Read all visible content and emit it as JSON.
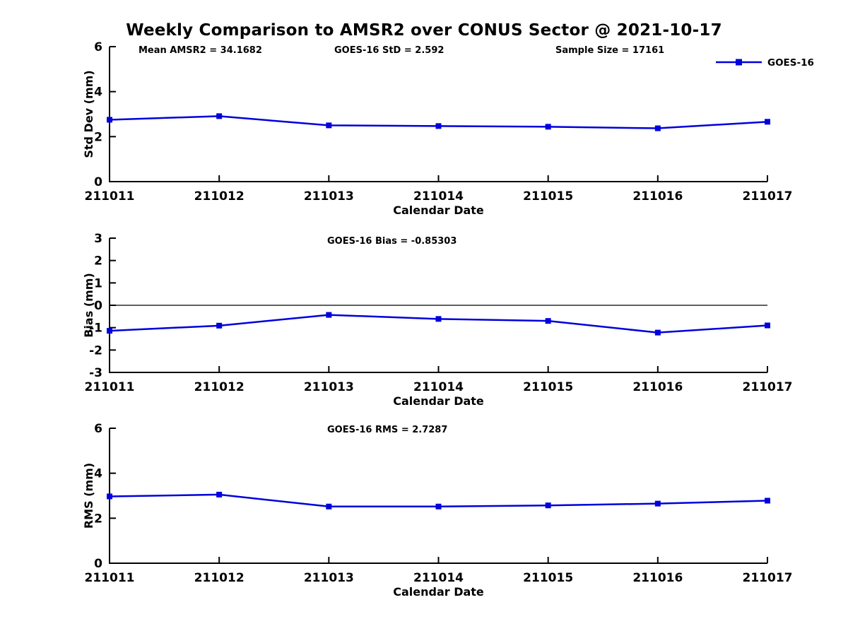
{
  "title": "Weekly Comparison to AMSR2 over CONUS Sector @ 2021-10-17",
  "legend": {
    "label": "GOES-16",
    "position": "top-right"
  },
  "colors": {
    "series": "#0000dd",
    "axis": "#000000",
    "zero_line": "#000000",
    "background": "#ffffff",
    "text": "#000000"
  },
  "x_axis": {
    "label": "Calendar Date",
    "categories": [
      "211011",
      "211012",
      "211013",
      "211014",
      "211015",
      "211016",
      "211017"
    ]
  },
  "chart_data": [
    {
      "type": "line",
      "name": "std-dev",
      "annotations": [
        "Mean AMSR2 = 34.1682",
        "GOES-16 StD = 2.592",
        "Sample Size = 17161"
      ],
      "ylabel": "Std Dev (mm)",
      "xlabel": "Calendar Date",
      "ylim": [
        0,
        6
      ],
      "yticks": [
        0,
        2,
        4,
        6
      ],
      "grid": false,
      "zero_line": false,
      "categories": [
        "211011",
        "211012",
        "211013",
        "211014",
        "211015",
        "211016",
        "211017"
      ],
      "series": [
        {
          "name": "GOES-16",
          "values": [
            2.75,
            2.91,
            2.5,
            2.47,
            2.44,
            2.37,
            2.66
          ]
        }
      ]
    },
    {
      "type": "line",
      "name": "bias",
      "annotations": [
        "GOES-16 Bias  = -0.85303"
      ],
      "ylabel": "Bias (mm)",
      "xlabel": "Calendar Date",
      "ylim": [
        -3,
        3
      ],
      "yticks": [
        -3,
        -2,
        -1,
        0,
        1,
        2,
        3
      ],
      "grid": false,
      "zero_line": true,
      "categories": [
        "211011",
        "211012",
        "211013",
        "211014",
        "211015",
        "211016",
        "211017"
      ],
      "series": [
        {
          "name": "GOES-16",
          "values": [
            -1.14,
            -0.91,
            -0.43,
            -0.61,
            -0.7,
            -1.22,
            -0.9
          ]
        }
      ]
    },
    {
      "type": "line",
      "name": "rms",
      "annotations": [
        "GOES-16 RMS = 2.7287"
      ],
      "ylabel": "RMS (mm)",
      "xlabel": "Calendar Date",
      "ylim": [
        0,
        6
      ],
      "yticks": [
        0,
        2,
        4,
        6
      ],
      "grid": false,
      "zero_line": false,
      "categories": [
        "211011",
        "211012",
        "211013",
        "211014",
        "211015",
        "211016",
        "211017"
      ],
      "series": [
        {
          "name": "GOES-16",
          "values": [
            2.97,
            3.05,
            2.52,
            2.52,
            2.57,
            2.65,
            2.78
          ]
        }
      ]
    }
  ]
}
